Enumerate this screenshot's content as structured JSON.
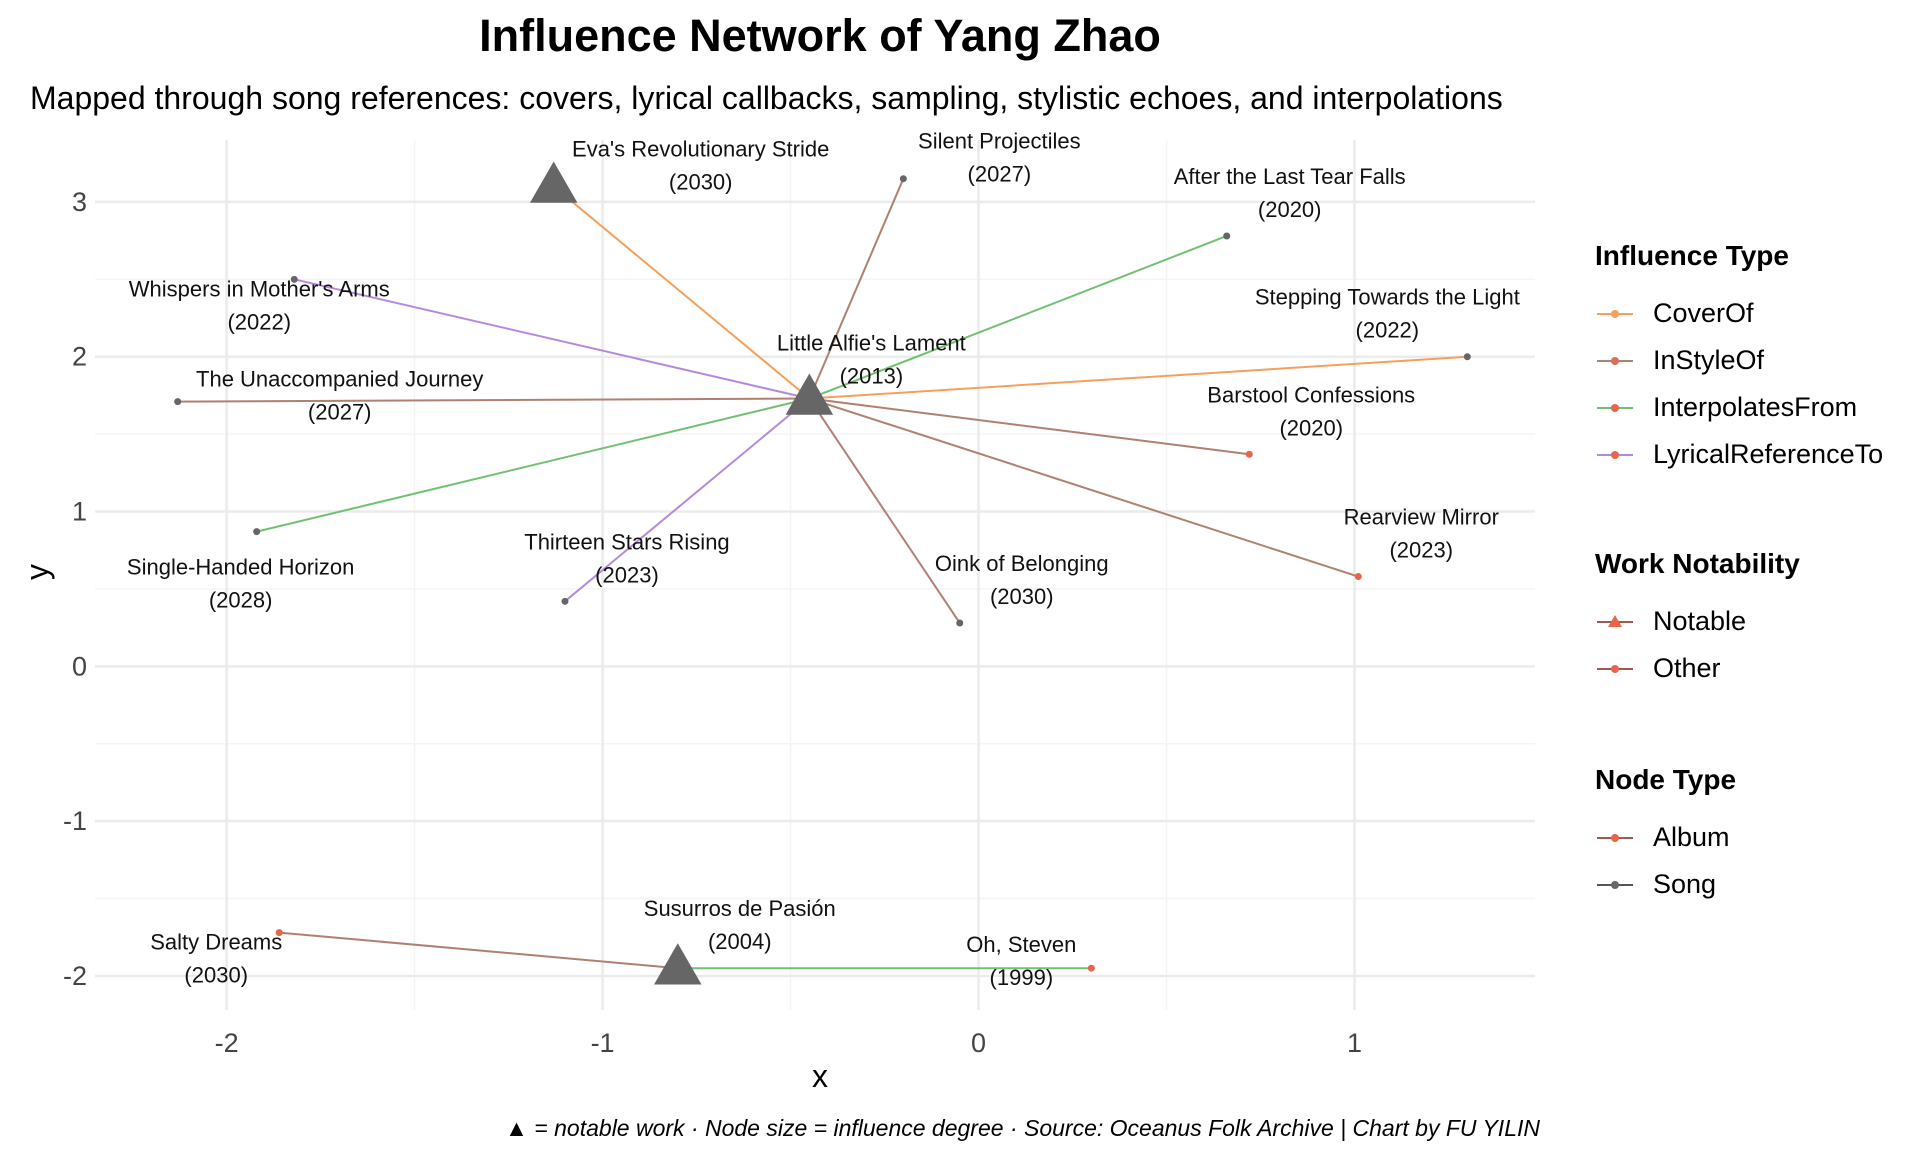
{
  "title": "Influence Network of Yang Zhao",
  "subtitle": "Mapped through song references: covers, lyrical callbacks, sampling, stylistic echoes, and interpolations",
  "caption": "▲ = notable work · Node size = influence degree · Source: Oceanus Folk Archive | Chart by FU YILIN",
  "colors": {
    "CoverOf": "#F5A05A",
    "InStyleOf": "#B08070",
    "InterpolatesFrom": "#72C072",
    "LyricalReferenceTo": "#B48ADC",
    "Album": "#E8654C",
    "Song": "#666666",
    "grid": "#EBEBEB"
  },
  "legend": {
    "influence_title": "Influence Type",
    "influence_items": [
      "CoverOf",
      "InStyleOf",
      "InterpolatesFrom",
      "LyricalReferenceTo"
    ],
    "notability_title": "Work Notability",
    "notability_items": [
      "Notable",
      "Other"
    ],
    "nodetype_title": "Node Type",
    "nodetype_items": [
      "Album",
      "Song"
    ]
  },
  "chart_data": {
    "type": "network",
    "xlabel": "x",
    "ylabel": "y",
    "xlim": [
      -2.35,
      1.48
    ],
    "ylim": [
      -2.22,
      3.4
    ],
    "xticks": [
      -2,
      -1,
      0,
      1
    ],
    "yticks": [
      -2,
      -1,
      0,
      1,
      2,
      3
    ],
    "nodes": [
      {
        "id": "alfie",
        "label": "Little Alfie's Lament",
        "year": "(2013)",
        "x": -0.45,
        "y": 1.73,
        "notable": true,
        "kind": "Song"
      },
      {
        "id": "eva",
        "label": "Eva's Revolutionary Stride",
        "year": "(2030)",
        "x": -1.13,
        "y": 3.1,
        "notable": true,
        "kind": "Song"
      },
      {
        "id": "silent",
        "label": "Silent Projectiles",
        "year": "(2027)",
        "x": -0.2,
        "y": 3.15,
        "notable": false,
        "kind": "Song"
      },
      {
        "id": "lasttear",
        "label": "After the Last Tear Falls",
        "year": "(2020)",
        "x": 0.66,
        "y": 2.78,
        "notable": false,
        "kind": "Song"
      },
      {
        "id": "whispers",
        "label": "Whispers in Mother's Arms",
        "year": "(2022)",
        "x": -1.82,
        "y": 2.5,
        "notable": false,
        "kind": "Song"
      },
      {
        "id": "stepping",
        "label": "Stepping Towards the Light",
        "year": "(2022)",
        "x": 1.3,
        "y": 2.0,
        "notable": false,
        "kind": "Song"
      },
      {
        "id": "unaccomp",
        "label": "The Unaccompanied Journey",
        "year": "(2027)",
        "x": -2.13,
        "y": 1.71,
        "notable": false,
        "kind": "Song"
      },
      {
        "id": "barstool",
        "label": "Barstool Confessions",
        "year": "(2020)",
        "x": 0.72,
        "y": 1.37,
        "notable": false,
        "kind": "Album"
      },
      {
        "id": "single",
        "label": "Single-Handed Horizon",
        "year": "(2028)",
        "x": -1.92,
        "y": 0.87,
        "notable": false,
        "kind": "Song"
      },
      {
        "id": "rearview",
        "label": "Rearview Mirror",
        "year": "(2023)",
        "x": 1.01,
        "y": 0.58,
        "notable": false,
        "kind": "Album"
      },
      {
        "id": "thirteen",
        "label": "Thirteen Stars Rising",
        "year": "(2023)",
        "x": -1.1,
        "y": 0.42,
        "notable": false,
        "kind": "Song"
      },
      {
        "id": "oink",
        "label": "Oink of Belonging",
        "year": "(2030)",
        "x": -0.05,
        "y": 0.28,
        "notable": false,
        "kind": "Song"
      },
      {
        "id": "susurros",
        "label": "Susurros de Pasión",
        "year": "(2004)",
        "x": -0.8,
        "y": -1.95,
        "notable": true,
        "kind": "Song"
      },
      {
        "id": "salty",
        "label": "Salty Dreams",
        "year": "(2030)",
        "x": -1.86,
        "y": -1.72,
        "notable": false,
        "kind": "Album"
      },
      {
        "id": "oh",
        "label": "Oh, Steven",
        "year": "(1999)",
        "x": 0.3,
        "y": -1.95,
        "notable": false,
        "kind": "Album"
      }
    ],
    "edges": [
      {
        "from": "alfie",
        "to": "eva",
        "type": "CoverOf"
      },
      {
        "from": "alfie",
        "to": "stepping",
        "type": "CoverOf"
      },
      {
        "from": "alfie",
        "to": "silent",
        "type": "InStyleOf"
      },
      {
        "from": "alfie",
        "to": "unaccomp",
        "type": "InStyleOf"
      },
      {
        "from": "alfie",
        "to": "barstool",
        "type": "InStyleOf"
      },
      {
        "from": "alfie",
        "to": "rearview",
        "type": "InStyleOf"
      },
      {
        "from": "alfie",
        "to": "oink",
        "type": "InStyleOf"
      },
      {
        "from": "alfie",
        "to": "lasttear",
        "type": "InterpolatesFrom"
      },
      {
        "from": "alfie",
        "to": "single",
        "type": "InterpolatesFrom"
      },
      {
        "from": "alfie",
        "to": "whispers",
        "type": "LyricalReferenceTo"
      },
      {
        "from": "alfie",
        "to": "thirteen",
        "type": "LyricalReferenceTo"
      },
      {
        "from": "susurros",
        "to": "salty",
        "type": "InStyleOf"
      },
      {
        "from": "susurros",
        "to": "oh",
        "type": "InterpolatesFrom"
      }
    ]
  }
}
